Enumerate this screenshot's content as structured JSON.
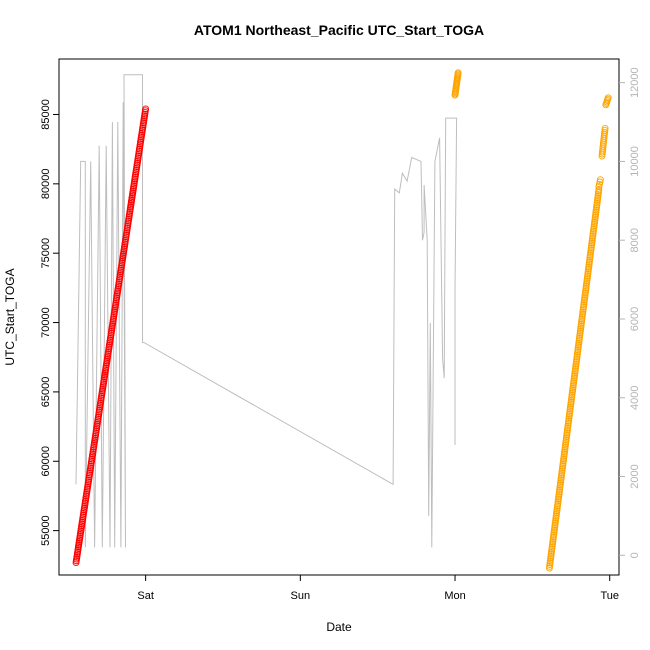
{
  "chart_data": {
    "type": "scatter",
    "title": "ATOM1 Northeast_Pacific UTC_Start_TOGA",
    "xlabel": "Date",
    "ylabel": "UTC_Start_TOGA",
    "x_ticks": [
      "Sat",
      "Sun",
      "Mon",
      "Tue"
    ],
    "x_tick_values": [
      1,
      2,
      3,
      4
    ],
    "xlim": [
      0.44,
      4.06
    ],
    "ylim": [
      51800,
      89000
    ],
    "y_ticks": [
      55000,
      60000,
      65000,
      70000,
      75000,
      80000,
      85000
    ],
    "y2lim": [
      -500,
      12600
    ],
    "y2_ticks": [
      0,
      2000,
      4000,
      6000,
      8000,
      10000,
      12000
    ],
    "grid": false,
    "legend": "none",
    "colors": {
      "series_red": "#ff0000",
      "series_orange": "#ffa500",
      "secondary_line": "#bebebe",
      "right_axis": "#b4b4b4"
    },
    "series": [
      {
        "color": "#ff0000",
        "marker": "open-circle",
        "x_range": [
          0.55,
          1.0
        ],
        "y_range": [
          52700,
          85400
        ],
        "count": 260
      },
      {
        "color": "#ffa500",
        "marker": "open-circle",
        "segments": [
          {
            "x_range": [
              3.0,
              3.02
            ],
            "y_range": [
              86400,
              88000
            ],
            "count": 20
          },
          {
            "x_range": [
              3.61,
              3.93
            ],
            "y_range": [
              52300,
              79600
            ],
            "count": 220
          },
          {
            "x_range": [
              3.93,
              3.94
            ],
            "y_range": [
              79800,
              80300
            ],
            "count": 4
          },
          {
            "x_range": [
              3.95,
              3.97
            ],
            "y_range": [
              82000,
              84000
            ],
            "count": 15
          },
          {
            "x_range": [
              3.975,
              3.99
            ],
            "y_range": [
              85700,
              86200
            ],
            "count": 6
          }
        ]
      },
      {
        "color": "#bebebe",
        "marker": "line",
        "axis": "right",
        "points": [
          [
            0.55,
            1800
          ],
          [
            0.58,
            10000
          ],
          [
            0.61,
            10000
          ],
          [
            0.61,
            200
          ],
          [
            0.645,
            10000
          ],
          [
            0.67,
            200
          ],
          [
            0.7,
            10400
          ],
          [
            0.72,
            200
          ],
          [
            0.745,
            10400
          ],
          [
            0.77,
            200
          ],
          [
            0.785,
            11000
          ],
          [
            0.8,
            200
          ],
          [
            0.82,
            11000
          ],
          [
            0.84,
            200
          ],
          [
            0.855,
            11500
          ],
          [
            0.87,
            200
          ],
          [
            0.86,
            12200
          ],
          [
            0.98,
            12200
          ],
          [
            0.98,
            5400
          ],
          [
            0.99,
            5400
          ],
          [
            2.6,
            1800
          ],
          [
            2.61,
            9300
          ],
          [
            2.64,
            9200
          ],
          [
            2.66,
            9700
          ],
          [
            2.69,
            9500
          ],
          [
            2.72,
            10100
          ],
          [
            2.78,
            10000
          ],
          [
            2.79,
            8000
          ],
          [
            2.8,
            8200
          ],
          [
            2.8,
            9400
          ],
          [
            2.82,
            8000
          ],
          [
            2.83,
            1000
          ],
          [
            2.84,
            5900
          ],
          [
            2.85,
            200
          ],
          [
            2.87,
            10000
          ],
          [
            2.9,
            10600
          ],
          [
            2.92,
            5000
          ],
          [
            2.93,
            4500
          ],
          [
            2.94,
            11100
          ],
          [
            3.01,
            11100
          ],
          [
            3.0,
            6700
          ],
          [
            3.0,
            2800
          ]
        ]
      }
    ]
  }
}
